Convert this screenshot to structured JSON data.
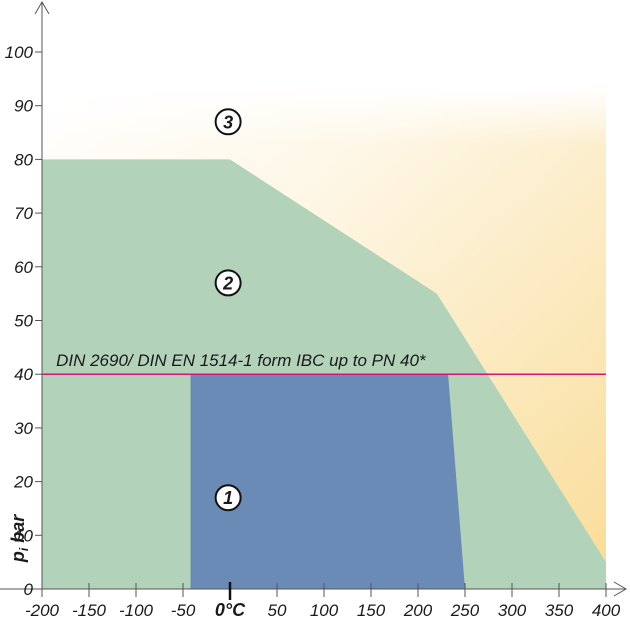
{
  "chart_data": {
    "type": "area",
    "xlim": [
      -200,
      400
    ],
    "ylim": [
      0,
      100
    ],
    "x_ticks": [
      -200,
      -150,
      -100,
      -50,
      0,
      50,
      100,
      150,
      200,
      250,
      300,
      350,
      400
    ],
    "x_tick_labels": [
      "-200",
      "-150",
      "-100",
      "-50",
      "0°C",
      "50",
      "100",
      "150",
      "200",
      "250",
      "300",
      "350",
      "400"
    ],
    "y_ticks": [
      0,
      10,
      20,
      30,
      40,
      50,
      60,
      70,
      80,
      90,
      100
    ],
    "y_tick_labels": [
      "0",
      "10",
      "20",
      "30",
      "40",
      "50",
      "60",
      "70",
      "80",
      "90",
      "100"
    ],
    "ylabel": "pi bar",
    "ylabel_main": "p",
    "ylabel_sub": "i",
    "ylabel_unit": "bar",
    "reference_line": {
      "y": 40,
      "label": "DIN 2690/ DIN EN 1514-1 form IBC up to PN 40*",
      "color": "#d6157a"
    },
    "regions": [
      {
        "label": "3",
        "color": "#fbe3a6",
        "label_at": [
          -2,
          87
        ]
      },
      {
        "label": "2",
        "color": "#b2d3b9",
        "boundary": [
          [
            -200,
            0
          ],
          [
            -200,
            80
          ],
          [
            0,
            80
          ],
          [
            220,
            55
          ],
          [
            400,
            5
          ],
          [
            400,
            0
          ]
        ],
        "label_at": [
          -2,
          57
        ]
      },
      {
        "label": "1",
        "color": "#6b8bb7",
        "boundary": [
          [
            -42,
            0
          ],
          [
            -42,
            40
          ],
          [
            232,
            40
          ],
          [
            250,
            0
          ]
        ],
        "label_at": [
          -2,
          17
        ]
      }
    ],
    "grid": false
  }
}
